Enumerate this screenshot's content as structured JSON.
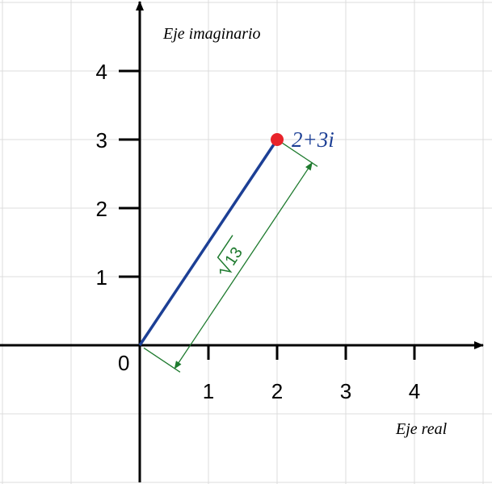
{
  "axes": {
    "x_title": "Eje real",
    "y_title": "Eje imaginario",
    "origin_label": "0",
    "x_ticks": [
      "1",
      "2",
      "3",
      "4"
    ],
    "y_ticks": [
      "1",
      "2",
      "3",
      "4"
    ]
  },
  "chart_data": {
    "type": "scatter",
    "points": [
      {
        "x": 2,
        "y": 3,
        "label": "2+3i"
      }
    ],
    "vector": {
      "from": [
        0,
        0
      ],
      "to": [
        2,
        3
      ]
    },
    "modulus_label_radicand": "13",
    "xlim": [
      -2,
      5
    ],
    "ylim": [
      -2,
      5
    ],
    "grid": true
  },
  "colors": {
    "vector": "#1c3f95",
    "point": "#e8232a",
    "point_label": "#1c3f95",
    "dimension": "#1e7a2e",
    "grid": "#dcdcdc",
    "axis": "#000000"
  }
}
